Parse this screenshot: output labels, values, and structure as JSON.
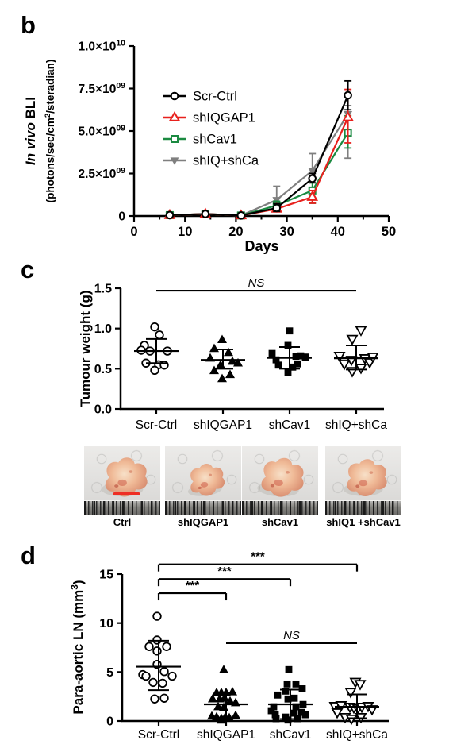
{
  "figure": {
    "bg": "#ffffff"
  },
  "panels": {
    "b": {
      "letter": "b"
    },
    "c": {
      "letter": "c"
    },
    "d": {
      "letter": "d"
    }
  },
  "colors": {
    "black": "#000000",
    "red": "#e8211d",
    "green": "#1b8a41",
    "gray": "#7f7f7f",
    "scale_bar": "#ee2e24"
  },
  "chart_data": [
    {
      "panel": "b",
      "type": "line",
      "ylabel_main_italic": "In vivo",
      "ylabel_main_rest": " BLI",
      "ylabel_sub_pre": "(photons/sec/cm",
      "ylabel_sub_sup": "2",
      "ylabel_sub_post": "/steradian)",
      "xlabel": "Days",
      "xlim": [
        0,
        50
      ],
      "x_major_ticks": [
        0,
        10,
        20,
        30,
        40,
        50
      ],
      "x_minor_ticks": [
        5,
        15,
        25,
        35,
        45
      ],
      "ylim_e9": [
        0,
        10
      ],
      "y_ticks": [
        {
          "v": 0,
          "text": "0"
        },
        {
          "v": 2.5,
          "mant": "2.5",
          "exp": "09"
        },
        {
          "v": 5,
          "mant": "5.0",
          "exp": "09"
        },
        {
          "v": 7.5,
          "mant": "7.5",
          "exp": "09"
        },
        {
          "v": 10,
          "mant": "1.0",
          "exp": "10"
        }
      ],
      "x_days": [
        7,
        14,
        21,
        28,
        35,
        42
      ],
      "series": [
        {
          "name": "Scr-Ctrl",
          "color": "#000000",
          "marker": "circle-open",
          "values_e9": [
            0.05,
            0.12,
            0.03,
            0.47,
            2.2,
            7.1
          ],
          "err_lo": [
            0,
            0,
            0,
            0.2,
            0.25,
            0.85
          ],
          "err_hi": [
            0,
            0,
            0,
            0.25,
            0.3,
            0.85
          ]
        },
        {
          "name": "shIQGAP1",
          "color": "#e8211d",
          "marker": "triangle-open",
          "values_e9": [
            0.05,
            0.12,
            0.03,
            0.42,
            1.12,
            5.8
          ],
          "err_lo": [
            0,
            0,
            0,
            0.12,
            0.37,
            1.5
          ],
          "err_hi": [
            0,
            0,
            0,
            0.12,
            0.38,
            1.65
          ]
        },
        {
          "name": "shCav1",
          "color": "#1b8a41",
          "marker": "square-open",
          "values_e9": [
            0.05,
            0.12,
            0.03,
            0.62,
            1.5,
            4.9
          ],
          "err_lo": [
            0,
            0,
            0,
            0.2,
            0.75,
            0.9
          ],
          "err_hi": [
            0,
            0,
            0,
            0.25,
            0.45,
            1.0
          ]
        },
        {
          "name": "shIQ+shCa",
          "color": "#7f7f7f",
          "marker": "triangle-down-filled",
          "values_e9": [
            0.05,
            0.12,
            0.03,
            0.95,
            2.67,
            6.0
          ],
          "err_lo": [
            0,
            0,
            0,
            0.3,
            0.45,
            2.6
          ],
          "err_hi": [
            0,
            0,
            0,
            0.8,
            1.0,
            0.5
          ]
        }
      ]
    },
    {
      "panel": "c",
      "type": "scatter",
      "ylabel": "Tumour weight (g)",
      "ylim": [
        0,
        1.5
      ],
      "y_ticks": [
        {
          "v": 0,
          "text": "0.0"
        },
        {
          "v": 0.5,
          "text": "0.5"
        },
        {
          "v": 1.0,
          "text": "1.0"
        },
        {
          "v": 1.5,
          "text": "1.5"
        }
      ],
      "categories": [
        "Scr-Ctrl",
        "shIQGAP1",
        "shCav1",
        "shIQ+shCa"
      ],
      "groups": [
        {
          "marker": "circle-open",
          "mean": 0.72,
          "whisker_lo": 0.57,
          "whisker_hi": 0.87,
          "points": [
            [
              -2,
              1.02
            ],
            [
              4,
              0.92
            ],
            [
              -15,
              0.79
            ],
            [
              -19,
              0.73
            ],
            [
              -8,
              0.72
            ],
            [
              14,
              0.72
            ],
            [
              -13,
              0.57
            ],
            [
              3,
              0.55
            ],
            [
              10,
              0.545
            ],
            [
              -2,
              0.48
            ]
          ]
        },
        {
          "marker": "triangle-filled",
          "mean": 0.61,
          "whisker_lo": 0.5,
          "whisker_hi": 0.74,
          "points": [
            [
              -1,
              0.86
            ],
            [
              -11,
              0.75
            ],
            [
              7,
              0.7
            ],
            [
              -16,
              0.63
            ],
            [
              12,
              0.59
            ],
            [
              19,
              0.57
            ],
            [
              -3,
              0.545
            ],
            [
              -11,
              0.475
            ],
            [
              9,
              0.425
            ],
            [
              -1,
              0.375
            ]
          ]
        },
        {
          "marker": "square-filled",
          "mean": 0.635,
          "whisker_lo": 0.5,
          "whisker_hi": 0.77,
          "points": [
            [
              0,
              0.97
            ],
            [
              -2,
              0.79
            ],
            [
              -22,
              0.69
            ],
            [
              14,
              0.66
            ],
            [
              -17,
              0.61
            ],
            [
              20,
              0.645
            ],
            [
              8,
              0.655
            ],
            [
              10,
              0.56
            ],
            [
              -14,
              0.545
            ],
            [
              4,
              0.52
            ],
            [
              -2,
              0.45
            ]
          ]
        },
        {
          "marker": "triangle-down-open",
          "mean": 0.63,
          "whisker_lo": 0.49,
          "whisker_hi": 0.79,
          "points": [
            [
              6,
              0.98
            ],
            [
              -5,
              0.87
            ],
            [
              -21,
              0.66
            ],
            [
              -6,
              0.61
            ],
            [
              11,
              0.63
            ],
            [
              17,
              0.58
            ],
            [
              21,
              0.65
            ],
            [
              -15,
              0.56
            ],
            [
              6,
              0.51
            ],
            [
              -5,
              0.47
            ]
          ]
        }
      ],
      "sig": [
        {
          "from": 0,
          "to": 3,
          "label": "NS",
          "style": "italic",
          "caps": false,
          "y": 1.47
        }
      ]
    },
    {
      "panel": "d",
      "type": "scatter",
      "ylabel_pre": "Para-aortic LN (mm",
      "ylabel_sup": "3",
      "ylabel_post": ")",
      "ylim": [
        0,
        15
      ],
      "y_ticks": [
        {
          "v": 0,
          "text": "0"
        },
        {
          "v": 5,
          "text": "5"
        },
        {
          "v": 10,
          "text": "10"
        },
        {
          "v": 15,
          "text": "15"
        }
      ],
      "categories": [
        "Scr-Ctrl",
        "shIQGAP1",
        "shCav1",
        "shIQ+shCa"
      ],
      "groups": [
        {
          "marker": "circle-open",
          "mean": 5.55,
          "whisker_lo": 3.15,
          "whisker_hi": 8.2,
          "points": [
            [
              -2,
              10.7
            ],
            [
              -2,
              8.27
            ],
            [
              -12,
              7.6
            ],
            [
              10,
              7.6
            ],
            [
              -2,
              7.15
            ],
            [
              -2,
              5.78
            ],
            [
              7,
              5.05
            ],
            [
              -20,
              4.74
            ],
            [
              -16,
              4.58
            ],
            [
              17,
              4.58
            ],
            [
              -7,
              3.94
            ],
            [
              5,
              3.86
            ],
            [
              -5,
              2.25
            ],
            [
              7,
              2.33
            ]
          ]
        },
        {
          "marker": "triangle-filled",
          "mean": 1.7,
          "whisker_lo": 0.32,
          "whisker_hi": 2.89,
          "points": [
            [
              -3,
              5.22
            ],
            [
              -12,
              2.89
            ],
            [
              -6,
              2.89
            ],
            [
              0,
              2.89
            ],
            [
              8,
              2.97
            ],
            [
              -17,
              2.25
            ],
            [
              -8,
              2.25
            ],
            [
              -2,
              2.33
            ],
            [
              5,
              2.0
            ],
            [
              12,
              1.85
            ],
            [
              -10,
              1.45
            ],
            [
              -3,
              1.37
            ],
            [
              -18,
              0.48
            ],
            [
              -12,
              0.4
            ],
            [
              -6,
              0.24
            ],
            [
              -1,
              0.4
            ],
            [
              4,
              0.32
            ],
            [
              12,
              0.56
            ],
            [
              -6,
              0.08
            ]
          ]
        },
        {
          "marker": "square-filled",
          "mean": 1.7,
          "whisker_lo": 0.2,
          "whisker_hi": 3.2,
          "points": [
            [
              -2,
              5.25
            ],
            [
              -4,
              3.78
            ],
            [
              7,
              3.78
            ],
            [
              15,
              3.29
            ],
            [
              -6,
              3.05
            ],
            [
              -16,
              2.65
            ],
            [
              5,
              2.33
            ],
            [
              -3,
              2.25
            ],
            [
              16,
              1.69
            ],
            [
              -21,
              1.45
            ],
            [
              7,
              1.45
            ],
            [
              -24,
              1.05
            ],
            [
              14,
              0.88
            ],
            [
              4,
              0.8
            ],
            [
              -19,
              0.64
            ],
            [
              19,
              0.64
            ],
            [
              -6,
              0.4
            ],
            [
              -18,
              0.24
            ],
            [
              9,
              0.24
            ],
            [
              -3,
              0.1
            ]
          ]
        },
        {
          "marker": "triangle-down-open",
          "mean": 1.45,
          "whisker_lo": 0.28,
          "whisker_hi": 2.72,
          "points": [
            [
              -2,
              4.0
            ],
            [
              4,
              3.78
            ],
            [
              -8,
              2.97
            ],
            [
              -28,
              1.53
            ],
            [
              -20,
              1.61
            ],
            [
              -9,
              1.45
            ],
            [
              -4,
              1.37
            ],
            [
              1,
              1.29
            ],
            [
              6,
              1.45
            ],
            [
              14,
              1.53
            ],
            [
              19,
              1.2
            ],
            [
              -25,
              0.88
            ],
            [
              -15,
              0.4
            ],
            [
              -7,
              0.24
            ],
            [
              5,
              0.4
            ]
          ]
        }
      ],
      "sig": [
        {
          "from": 0,
          "to": 1,
          "label": "***",
          "style": "bold",
          "caps": true,
          "y": 13.05
        },
        {
          "from": 0,
          "to": 2,
          "label": "***",
          "style": "bold",
          "caps": true,
          "y": 14.5
        },
        {
          "from": 0,
          "to": 3,
          "label": "***",
          "style": "bold",
          "caps": true,
          "y": 16.0
        },
        {
          "from": 1,
          "to": 3,
          "label": "NS",
          "style": "italic",
          "caps": false,
          "y": 7.95
        }
      ]
    }
  ],
  "photos": {
    "items": [
      {
        "label": "Ctrl",
        "scale_bar": true
      },
      {
        "label": "shIQGAP1",
        "scale_bar": false
      },
      {
        "label": "shCav1",
        "scale_bar": false
      },
      {
        "label": "shIQ1 +shCav1",
        "scale_bar": false
      }
    ]
  }
}
